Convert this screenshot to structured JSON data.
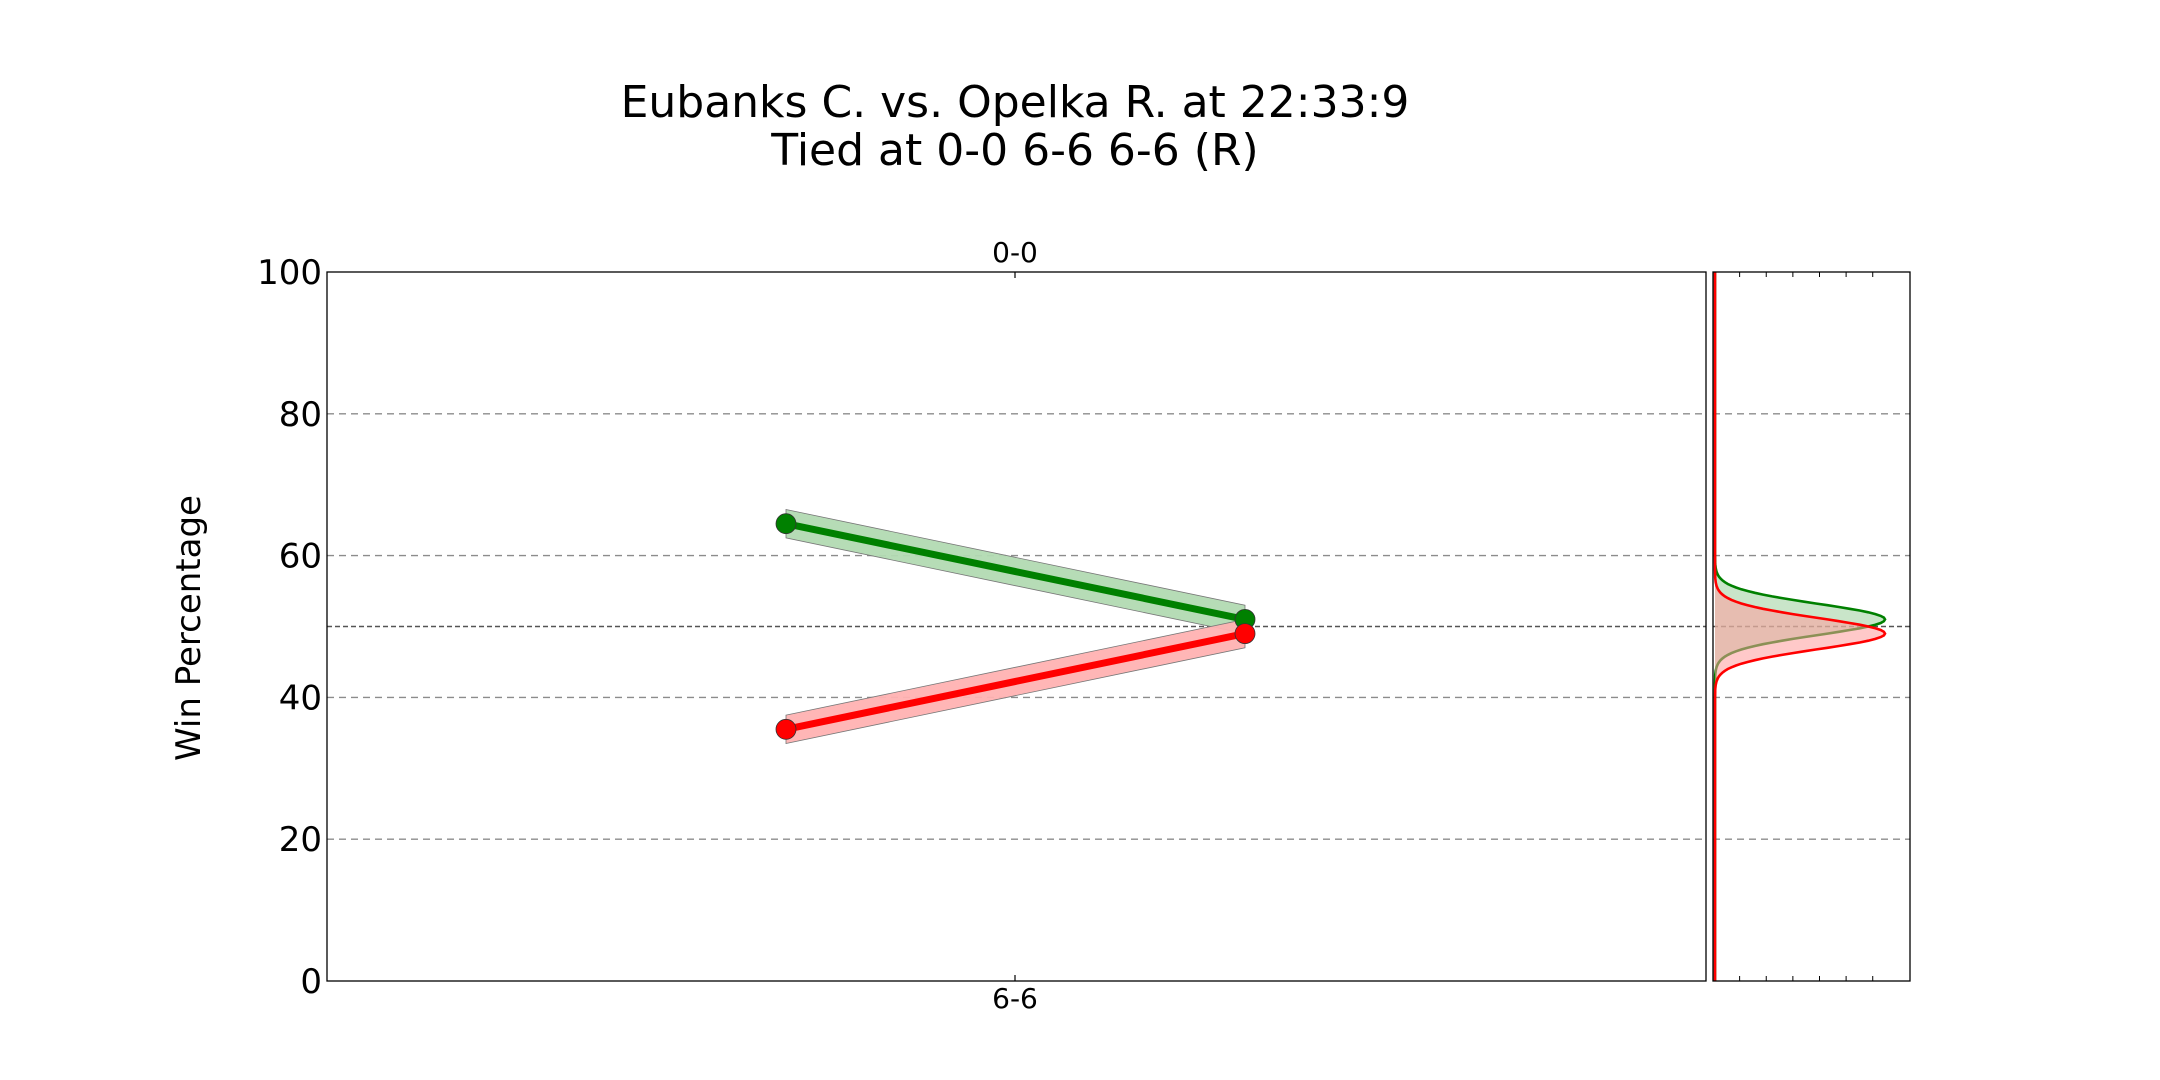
{
  "chart_data": {
    "type": "line",
    "title_lines": [
      "Eubanks C. vs. Opelka R. at 22:33:9",
      "Tied at 0-0 6-6 6-6 (R)"
    ],
    "ylabel": "Win Percentage",
    "ylim": [
      0,
      100
    ],
    "yticks": [
      0,
      20,
      40,
      60,
      80,
      100
    ],
    "grid": "horizontal-dashed",
    "reference_line": 50,
    "x_labels": {
      "top": "0-0",
      "bottom": "6-6"
    },
    "x": [
      1,
      2
    ],
    "series": [
      {
        "color": "#008000",
        "band_color": "#b2dab2",
        "values": [
          64.5,
          51
        ],
        "band": [
          2,
          2
        ]
      },
      {
        "color": "#ff0000",
        "band_color": "#ffb2b2",
        "values": [
          35.5,
          49
        ],
        "band": [
          2,
          2
        ]
      }
    ],
    "distribution_panel": [
      {
        "color": "#008000",
        "mean": 51,
        "sd": 2.2
      },
      {
        "color": "#ff0000",
        "mean": 49,
        "sd": 2.2
      }
    ]
  }
}
